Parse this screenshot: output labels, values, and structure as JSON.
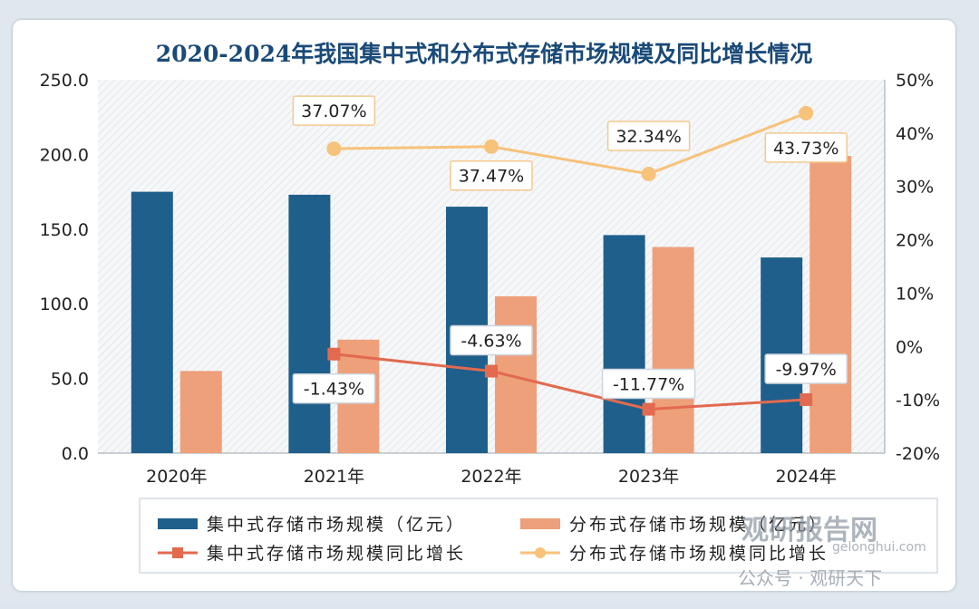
{
  "chart_data": {
    "type": "bar+line",
    "title": "2020-2024年我国集中式和分布式存储市场规模及同比增长情况",
    "categories": [
      "2020年",
      "2021年",
      "2022年",
      "2023年",
      "2024年"
    ],
    "left_axis": {
      "ylim": [
        0,
        250
      ],
      "ticks": [
        "0.0",
        "50.0",
        "100.0",
        "150.0",
        "200.0",
        "250.0"
      ],
      "tick_values": [
        0,
        50,
        100,
        150,
        200,
        250
      ]
    },
    "right_axis": {
      "ylim": [
        -20,
        50
      ],
      "ticks": [
        "-20%",
        "-10%",
        "0%",
        "10%",
        "20%",
        "30%",
        "40%",
        "50%"
      ],
      "tick_values": [
        -20,
        -10,
        0,
        10,
        20,
        30,
        40,
        50
      ]
    },
    "bar_series": [
      {
        "name": "集中式存储市场规模（亿元）",
        "color": "#1f5f8b",
        "values": [
          175,
          173,
          165,
          146,
          131
        ]
      },
      {
        "name": "分布式存储市场规模（亿元）",
        "color": "#eea07a",
        "values": [
          55,
          76,
          105,
          138,
          199
        ]
      }
    ],
    "line_series": [
      {
        "name": "集中式存储市场规模同比增长",
        "color": "#e26a4f",
        "values": [
          null,
          -1.43,
          -4.63,
          -11.77,
          -9.97
        ],
        "labels": [
          null,
          "-1.43%",
          "-4.63%",
          "-11.77%",
          "-9.97%"
        ]
      },
      {
        "name": "分布式存储市场规模同比增长",
        "color": "#f7c27a",
        "values": [
          null,
          37.07,
          37.47,
          32.34,
          43.73
        ],
        "labels": [
          null,
          "37.07%",
          "37.47%",
          "32.34%",
          "43.73%"
        ]
      }
    ],
    "legend_position": "bottom",
    "grid": false
  },
  "watermark": {
    "logo_text": "观研报告网",
    "sub_text": "gelonghui.com",
    "account_text": "公众号 · 观研天下"
  }
}
